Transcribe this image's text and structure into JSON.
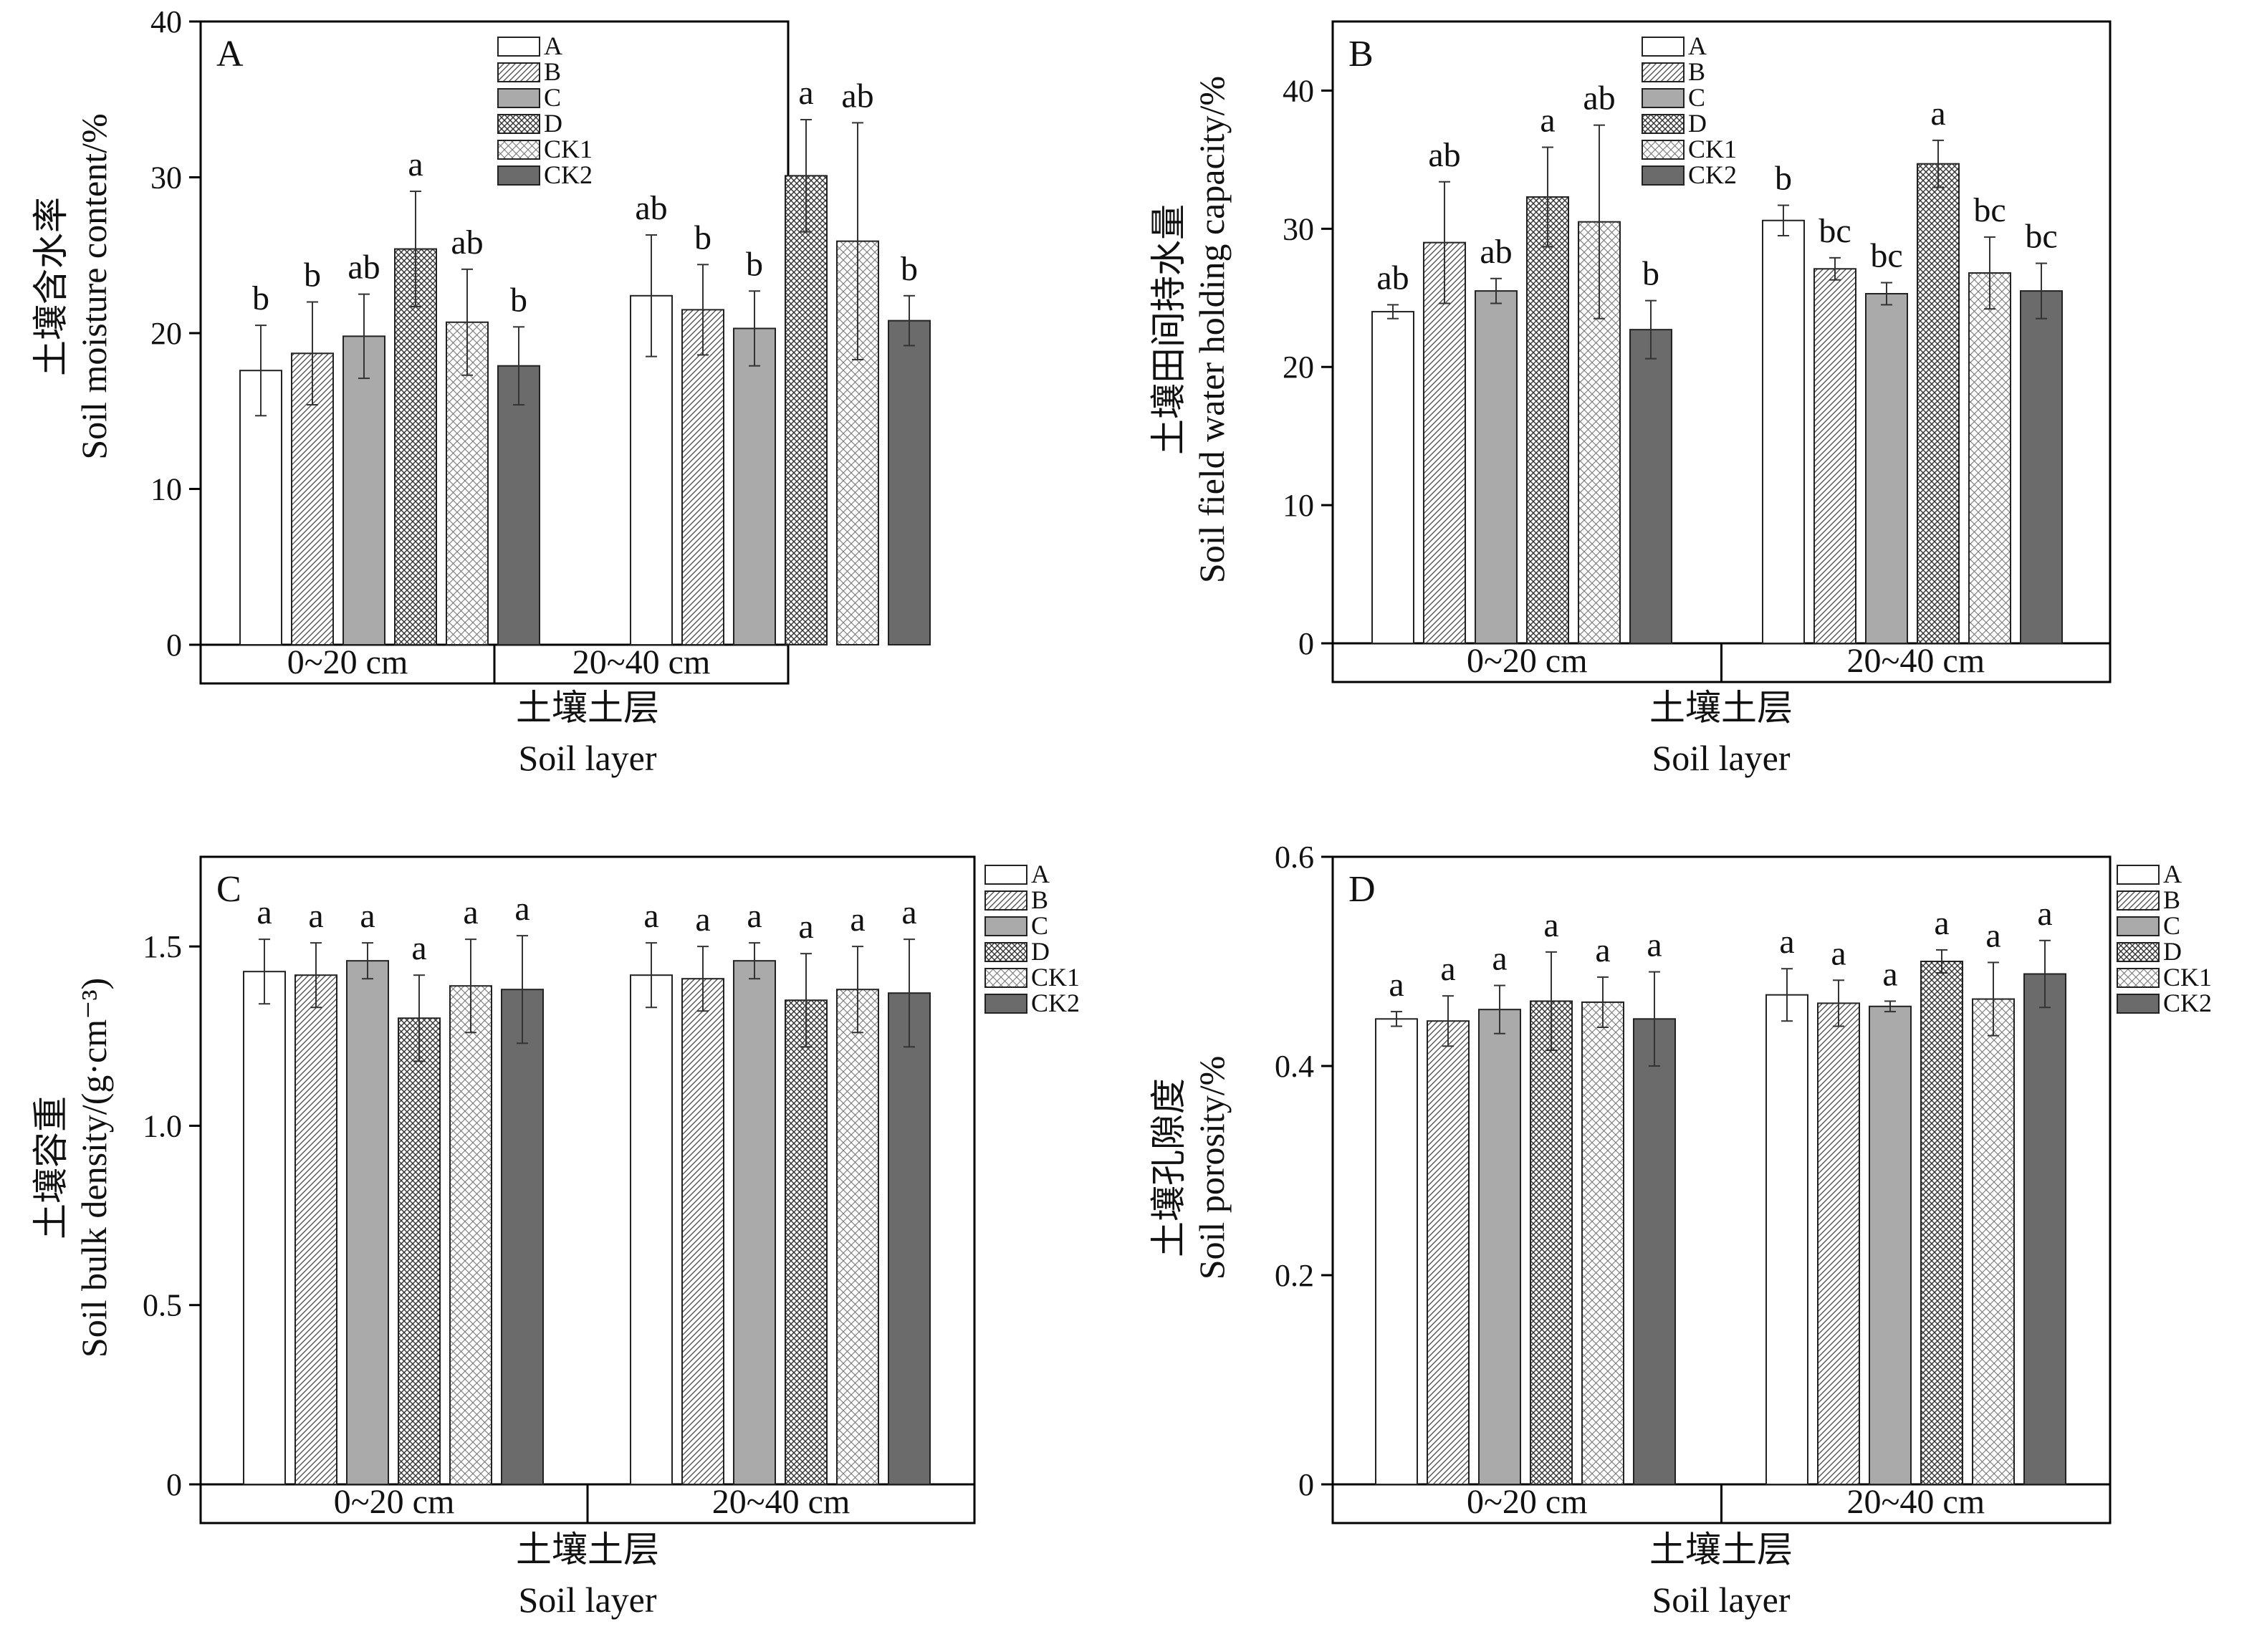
{
  "chart_data": [
    {
      "type": "bar",
      "panel": "A",
      "ylabel_cn": "土壤含水率",
      "ylabel_en": "Soil moisture content/%",
      "xlabel_cn": "土壤土层",
      "xlabel_en": "Soil layer",
      "categories": [
        "0~20 cm",
        "20~40 cm"
      ],
      "ylim": [
        0,
        40
      ],
      "yticks": [
        "0",
        "10",
        "20",
        "30",
        "40"
      ],
      "legend_position": "top-center",
      "series": [
        {
          "name": "A",
          "values": [
            17.6,
            22.4
          ],
          "errors": [
            2.9,
            3.9
          ],
          "letters": [
            "b",
            "ab"
          ]
        },
        {
          "name": "B",
          "values": [
            18.7,
            21.5
          ],
          "errors": [
            3.3,
            2.9
          ],
          "letters": [
            "b",
            "b"
          ]
        },
        {
          "name": "C",
          "values": [
            19.8,
            20.3
          ],
          "errors": [
            2.7,
            2.4
          ],
          "letters": [
            "ab",
            "b"
          ]
        },
        {
          "name": "D",
          "values": [
            25.4,
            30.1
          ],
          "errors": [
            3.7,
            3.6
          ],
          "letters": [
            "a",
            "a"
          ]
        },
        {
          "name": "CK1",
          "values": [
            20.7,
            25.9
          ],
          "errors": [
            3.4,
            7.6
          ],
          "letters": [
            "ab",
            "ab"
          ]
        },
        {
          "name": "CK2",
          "values": [
            17.9,
            20.8
          ],
          "errors": [
            2.5,
            1.6
          ],
          "letters": [
            "b",
            "b"
          ]
        }
      ]
    },
    {
      "type": "bar",
      "panel": "B",
      "ylabel_cn": "土壤田间持水量",
      "ylabel_en": "Soil field water holding capacity/%",
      "xlabel_cn": "土壤土层",
      "xlabel_en": "Soil layer",
      "categories": [
        "0~20 cm",
        "20~40 cm"
      ],
      "ylim": [
        0,
        45
      ],
      "yticks": [
        "0",
        "10",
        "20",
        "30",
        "40"
      ],
      "legend_position": "top-center",
      "series": [
        {
          "name": "A",
          "values": [
            24.0,
            30.6
          ],
          "errors": [
            0.5,
            1.1
          ],
          "letters": [
            "ab",
            "b"
          ]
        },
        {
          "name": "B",
          "values": [
            29.0,
            27.1
          ],
          "errors": [
            4.4,
            0.8
          ],
          "letters": [
            "ab",
            "bc"
          ]
        },
        {
          "name": "C",
          "values": [
            25.5,
            25.3
          ],
          "errors": [
            0.9,
            0.8
          ],
          "letters": [
            "ab",
            "bc"
          ]
        },
        {
          "name": "D",
          "values": [
            32.3,
            34.7
          ],
          "errors": [
            3.6,
            1.7
          ],
          "letters": [
            "a",
            "a"
          ]
        },
        {
          "name": "CK1",
          "values": [
            30.5,
            26.8
          ],
          "errors": [
            7.0,
            2.6
          ],
          "letters": [
            "ab",
            "bc"
          ]
        },
        {
          "name": "CK2",
          "values": [
            22.7,
            25.5
          ],
          "errors": [
            2.1,
            2.0
          ],
          "letters": [
            "b",
            "bc"
          ]
        }
      ]
    },
    {
      "type": "bar",
      "panel": "C",
      "ylabel_cn": "土壤容重",
      "ylabel_en": "Soil bulk density/(g·cm⁻³)",
      "xlabel_cn": "土壤土层",
      "xlabel_en": "Soil layer",
      "categories": [
        "0~20 cm",
        "20~40 cm"
      ],
      "ylim": [
        0,
        1.75
      ],
      "yticks": [
        "0",
        "0.5",
        "1.0",
        "1.5"
      ],
      "legend_position": "top-right",
      "series": [
        {
          "name": "A",
          "values": [
            1.43,
            1.42
          ],
          "errors": [
            0.09,
            0.09
          ],
          "letters": [
            "a",
            "a"
          ]
        },
        {
          "name": "B",
          "values": [
            1.42,
            1.41
          ],
          "errors": [
            0.09,
            0.09
          ],
          "letters": [
            "a",
            "a"
          ]
        },
        {
          "name": "C",
          "values": [
            1.46,
            1.46
          ],
          "errors": [
            0.05,
            0.05
          ],
          "letters": [
            "a",
            "a"
          ]
        },
        {
          "name": "D",
          "values": [
            1.3,
            1.35
          ],
          "errors": [
            0.12,
            0.13
          ],
          "letters": [
            "a",
            "a"
          ]
        },
        {
          "name": "CK1",
          "values": [
            1.39,
            1.38
          ],
          "errors": [
            0.13,
            0.12
          ],
          "letters": [
            "a",
            "a"
          ]
        },
        {
          "name": "CK2",
          "values": [
            1.38,
            1.37
          ],
          "errors": [
            0.15,
            0.15
          ],
          "letters": [
            "a",
            "a"
          ]
        }
      ]
    },
    {
      "type": "bar",
      "panel": "D",
      "ylabel_cn": "土壤孔隙度",
      "ylabel_en": "Soil porosity/%",
      "xlabel_cn": "土壤土层",
      "xlabel_en": "Soil layer",
      "categories": [
        "0~20 cm",
        "20~40 cm"
      ],
      "ylim": [
        0,
        0.6
      ],
      "yticks": [
        "0",
        "0.2",
        "0.4",
        "0.6"
      ],
      "legend_position": "top-right",
      "series": [
        {
          "name": "A",
          "values": [
            0.445,
            0.468
          ],
          "errors": [
            0.007,
            0.025
          ],
          "letters": [
            "a",
            "a"
          ]
        },
        {
          "name": "B",
          "values": [
            0.443,
            0.46
          ],
          "errors": [
            0.024,
            0.022
          ],
          "letters": [
            "a",
            "a"
          ]
        },
        {
          "name": "C",
          "values": [
            0.454,
            0.457
          ],
          "errors": [
            0.023,
            0.005
          ],
          "letters": [
            "a",
            "a"
          ]
        },
        {
          "name": "D",
          "values": [
            0.462,
            0.5
          ],
          "errors": [
            0.047,
            0.011
          ],
          "letters": [
            "a",
            "a"
          ]
        },
        {
          "name": "CK1",
          "values": [
            0.461,
            0.464
          ],
          "errors": [
            0.024,
            0.035
          ],
          "letters": [
            "a",
            "a"
          ]
        },
        {
          "name": "CK2",
          "values": [
            0.445,
            0.488
          ],
          "errors": [
            0.045,
            0.032
          ],
          "letters": [
            "a",
            "a"
          ]
        }
      ]
    }
  ]
}
